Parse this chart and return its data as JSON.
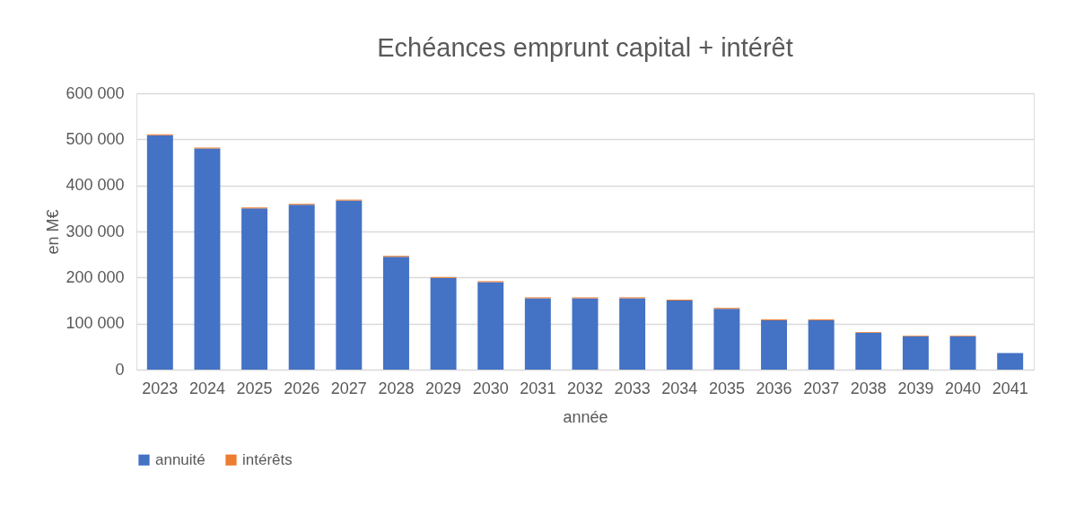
{
  "chart_data": {
    "type": "bar",
    "title": "Echéances emprunt capital + intérêt",
    "xlabel": "année",
    "ylabel": "en M€",
    "categories": [
      "2023",
      "2024",
      "2025",
      "2026",
      "2027",
      "2028",
      "2029",
      "2030",
      "2031",
      "2032",
      "2033",
      "2034",
      "2035",
      "2036",
      "2037",
      "2038",
      "2039",
      "2040",
      "2041"
    ],
    "stacked": true,
    "series": [
      {
        "name": "annuité",
        "color": "#4472c4",
        "values": [
          509000,
          480000,
          350000,
          358000,
          367000,
          245000,
          199000,
          190000,
          155000,
          155000,
          155000,
          150000,
          132000,
          107000,
          107000,
          80000,
          72000,
          72000,
          36000
        ]
      },
      {
        "name": "intérêts",
        "color": "#ed7d31",
        "values": [
          2000,
          2000,
          2000,
          2000,
          2000,
          2000,
          2000,
          2000,
          2000,
          2000,
          2000,
          2000,
          2000,
          2000,
          2000,
          1500,
          1500,
          1500,
          null
        ]
      }
    ],
    "ylim": [
      0,
      600000
    ],
    "yticks": [
      {
        "value": 0,
        "label": "0"
      },
      {
        "value": 100000,
        "label": "100 000"
      },
      {
        "value": 200000,
        "label": "200 000"
      },
      {
        "value": 300000,
        "label": "300 000"
      },
      {
        "value": 400000,
        "label": "400 000"
      },
      {
        "value": 500000,
        "label": "500 000"
      },
      {
        "value": 600000,
        "label": "600 000"
      }
    ],
    "grid": "y",
    "legend": "bottom"
  }
}
